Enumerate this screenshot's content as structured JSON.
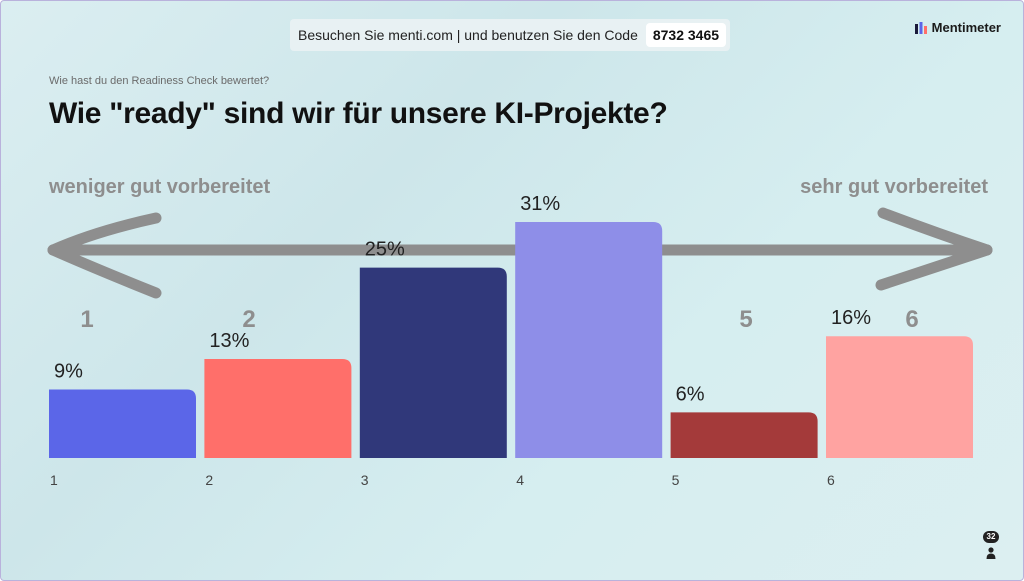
{
  "header": {
    "join_text": "Besuchen Sie menti.com | und benutzen Sie den Code",
    "code": "8732 3465",
    "brand": "Mentimeter"
  },
  "subtitle": "Wie hast du den Readiness Check bewertet?",
  "title": "Wie \"ready\" sind wir für unsere KI-Projekte?",
  "scale": {
    "left_label": "weniger gut vorbereitet",
    "right_label": "sehr gut vorbereitet",
    "numbers": [
      "1",
      "2",
      "5",
      "6"
    ]
  },
  "participants": "32",
  "colors": {
    "arrow": "#8e8e8e",
    "bar1": "#5b66e8",
    "bar2": "#ff6f6a",
    "bar3": "#30387a",
    "bar4": "#8e8ee8",
    "bar5": "#a43a3a",
    "bar6": "#ffa3a1"
  },
  "chart_data": {
    "type": "bar",
    "categories": [
      "1",
      "2",
      "3",
      "4",
      "5",
      "6"
    ],
    "values": [
      9,
      13,
      25,
      31,
      6,
      16
    ],
    "value_labels": [
      "9%",
      "13%",
      "25%",
      "31%",
      "6%",
      "16%"
    ],
    "colors": [
      "#5b66e8",
      "#ff6f6a",
      "#30387a",
      "#8e8ee8",
      "#a43a3a",
      "#ffa3a1"
    ],
    "ylim": [
      0,
      31
    ],
    "grid": false
  }
}
